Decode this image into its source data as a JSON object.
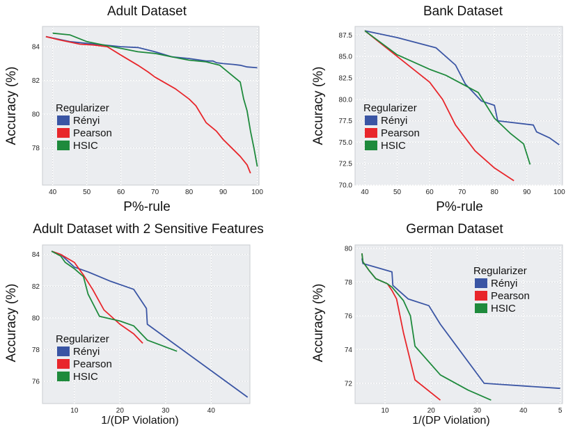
{
  "chart_data": [
    {
      "type": "line",
      "title": "Adult Dataset",
      "xlabel": "P%-rule",
      "ylabel": "Accuracy (%)",
      "xlim": [
        37,
        100.5
      ],
      "ylim": [
        75.8,
        85.2
      ],
      "xticks": [
        "40",
        "50",
        "60",
        "70",
        "80",
        "90",
        "100"
      ],
      "yticks": [
        "78",
        "80",
        "82",
        "84"
      ],
      "legend": {
        "title": "Regularizer",
        "position": "middle-left"
      },
      "grid": true,
      "series": [
        {
          "name": "Rényi",
          "color": "#3a55a4",
          "x": [
            38,
            45,
            50,
            55,
            60,
            65,
            70,
            75,
            80,
            85,
            87,
            88,
            90,
            93,
            95,
            97,
            100
          ],
          "y": [
            84.6,
            84.3,
            84.2,
            84.1,
            84.0,
            83.95,
            83.7,
            83.4,
            83.3,
            83.15,
            83.15,
            83.05,
            83.0,
            82.95,
            82.9,
            82.8,
            82.75
          ]
        },
        {
          "name": "Pearson",
          "color": "#e8262b",
          "x": [
            38,
            42,
            48,
            52,
            56,
            60,
            65,
            68,
            70,
            76,
            80,
            82,
            85,
            88,
            90,
            92,
            95,
            97,
            98
          ],
          "y": [
            84.6,
            84.4,
            84.15,
            84.1,
            84.0,
            83.5,
            82.9,
            82.5,
            82.2,
            81.5,
            80.9,
            80.5,
            79.5,
            79.0,
            78.5,
            78.1,
            77.5,
            77.0,
            76.5
          ]
        },
        {
          "name": "HSIC",
          "color": "#1e8a3c",
          "x": [
            40,
            45,
            50,
            55,
            60,
            65,
            70,
            75,
            80,
            85,
            89,
            92,
            95,
            96,
            97,
            98,
            99,
            100
          ],
          "y": [
            84.8,
            84.7,
            84.3,
            84.1,
            83.9,
            83.7,
            83.6,
            83.4,
            83.2,
            83.1,
            82.9,
            82.4,
            81.9,
            80.9,
            80.2,
            79.0,
            78.0,
            76.9
          ]
        }
      ]
    },
    {
      "type": "line",
      "title": "Bank Dataset",
      "xlabel": "P%-rule",
      "ylabel": "Accuracy (%)",
      "xlim": [
        37,
        101
      ],
      "ylim": [
        70.0,
        88.5
      ],
      "xticks": [
        "40",
        "50",
        "60",
        "70",
        "80",
        "90",
        "100"
      ],
      "yticks": [
        "70.0",
        "72.5",
        "75.0",
        "77.5",
        "80.0",
        "82.5",
        "85.0",
        "87.5"
      ],
      "legend": {
        "title": "Regularizer",
        "position": "middle-left"
      },
      "grid": true,
      "series": [
        {
          "name": "Rényi",
          "color": "#3a55a4",
          "x": [
            40,
            50,
            62,
            68,
            71,
            76,
            80,
            81,
            92,
            93,
            97,
            100
          ],
          "y": [
            88.0,
            87.2,
            86.0,
            84.0,
            81.8,
            79.8,
            79.3,
            77.5,
            77.0,
            76.2,
            75.5,
            74.7
          ]
        },
        {
          "name": "Pearson",
          "color": "#e8262b",
          "x": [
            40,
            50,
            60,
            64,
            68,
            74,
            80,
            86
          ],
          "y": [
            88.0,
            85.0,
            82.0,
            80.0,
            77.0,
            74.0,
            72.0,
            70.5
          ]
        },
        {
          "name": "HSIC",
          "color": "#1e8a3c",
          "x": [
            40,
            50,
            60,
            65,
            70,
            75,
            80,
            85,
            89,
            91
          ],
          "y": [
            88.0,
            85.2,
            83.5,
            82.8,
            81.8,
            80.8,
            77.8,
            76.0,
            74.8,
            72.4
          ]
        }
      ]
    },
    {
      "type": "line",
      "title": "Adult Dataset with 2 Sensitive Features",
      "xlabel": "1/(DP Violation)",
      "ylabel": "Accuracy (%)",
      "xlim": [
        3,
        48.5
      ],
      "ylim": [
        74.6,
        84.6
      ],
      "xticks": [
        "10",
        "20",
        "30",
        "40"
      ],
      "yticks": [
        "76",
        "78",
        "80",
        "82",
        "84"
      ],
      "legend": {
        "title": "Regularizer",
        "position": "bottom-left"
      },
      "grid": true,
      "series": [
        {
          "name": "Rényi",
          "color": "#3a55a4",
          "x": [
            5,
            7,
            10,
            13,
            18,
            23,
            25.8,
            26,
            48
          ],
          "y": [
            84.2,
            84.0,
            83.2,
            82.9,
            82.3,
            81.8,
            80.6,
            79.6,
            75.0
          ]
        },
        {
          "name": "Pearson",
          "color": "#e8262b",
          "x": [
            5,
            7,
            10,
            12,
            14,
            16.5,
            20,
            23,
            25
          ],
          "y": [
            84.2,
            84.0,
            83.5,
            82.7,
            81.8,
            80.5,
            79.6,
            79.0,
            78.4
          ]
        },
        {
          "name": "HSIC",
          "color": "#1e8a3c",
          "x": [
            5,
            7,
            8,
            10,
            12,
            13,
            15.5,
            20,
            23,
            26,
            32.5
          ],
          "y": [
            84.2,
            83.9,
            83.5,
            83.1,
            82.6,
            81.5,
            80.1,
            79.8,
            79.5,
            78.6,
            77.9
          ]
        }
      ]
    },
    {
      "type": "line",
      "title": "German Dataset",
      "xlabel": "1/(DP Violation)",
      "ylabel": "Accuracy (%)",
      "xlim": [
        3.5,
        48.5
      ],
      "ylim": [
        70.8,
        80.2
      ],
      "xticks": [
        "10",
        "20",
        "30",
        "40",
        "5"
      ],
      "yticks": [
        "72",
        "74",
        "76",
        "78",
        "80"
      ],
      "legend": {
        "title": "Regularizer",
        "position": "upper-right"
      },
      "grid": true,
      "series": [
        {
          "name": "Rényi",
          "color": "#3a55a4",
          "x": [
            5,
            5.2,
            11.5,
            11.7,
            15,
            19.5,
            22,
            31.5,
            48
          ],
          "y": [
            79.4,
            79.1,
            78.6,
            77.8,
            77.0,
            76.6,
            75.5,
            72.0,
            71.7
          ]
        },
        {
          "name": "Pearson",
          "color": "#e8262b",
          "x": [
            5,
            5.2,
            6.5,
            8,
            10.5,
            11.5,
            12.5,
            14,
            16.5,
            22
          ],
          "y": [
            79.7,
            79.2,
            78.7,
            78.2,
            77.9,
            77.5,
            77.0,
            75.0,
            72.2,
            71.0
          ]
        },
        {
          "name": "HSIC",
          "color": "#1e8a3c",
          "x": [
            5,
            5.2,
            6.5,
            8,
            10.5,
            11.5,
            14,
            15.5,
            16.5,
            22,
            28,
            33
          ],
          "y": [
            79.7,
            79.2,
            78.7,
            78.2,
            77.9,
            77.7,
            76.9,
            76.0,
            74.2,
            72.5,
            71.6,
            71.0
          ]
        }
      ]
    }
  ]
}
